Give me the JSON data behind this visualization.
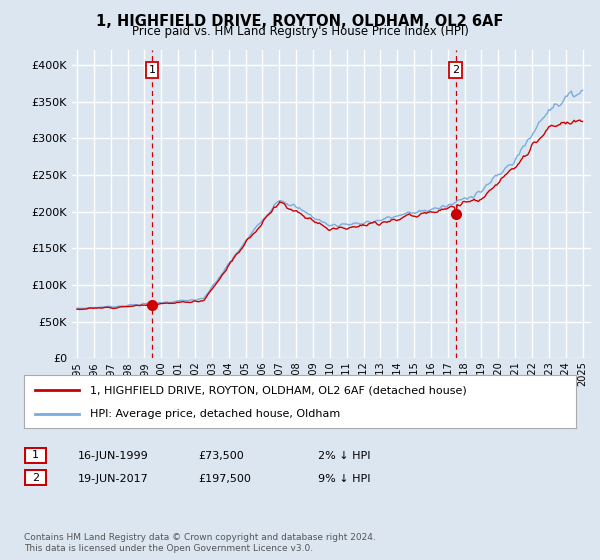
{
  "title": "1, HIGHFIELD DRIVE, ROYTON, OLDHAM, OL2 6AF",
  "subtitle": "Price paid vs. HM Land Registry's House Price Index (HPI)",
  "bg_color": "#dce6f0",
  "plot_bg_color": "#dce6f0",
  "grid_color": "#ffffff",
  "ylim": [
    0,
    420000
  ],
  "yticks": [
    0,
    50000,
    100000,
    150000,
    200000,
    250000,
    300000,
    350000,
    400000
  ],
  "ytick_labels": [
    "£0",
    "£50K",
    "£100K",
    "£150K",
    "£200K",
    "£250K",
    "£300K",
    "£350K",
    "£400K"
  ],
  "sale1_date_num": 1999.46,
  "sale1_price": 73500,
  "sale2_date_num": 2017.46,
  "sale2_price": 197500,
  "line_color_property": "#cc0000",
  "line_color_hpi": "#7aaddc",
  "marker_color": "#cc0000",
  "vline_color": "#cc0000",
  "legend_label_property": "1, HIGHFIELD DRIVE, ROYTON, OLDHAM, OL2 6AF (detached house)",
  "legend_label_hpi": "HPI: Average price, detached house, Oldham",
  "note1_date": "16-JUN-1999",
  "note1_price": "£73,500",
  "note1_hpi": "2% ↓ HPI",
  "note2_date": "19-JUN-2017",
  "note2_price": "£197,500",
  "note2_hpi": "9% ↓ HPI",
  "copyright": "Contains HM Land Registry data © Crown copyright and database right 2024.\nThis data is licensed under the Open Government Licence v3.0.",
  "start_year": 1995,
  "end_year": 2025
}
